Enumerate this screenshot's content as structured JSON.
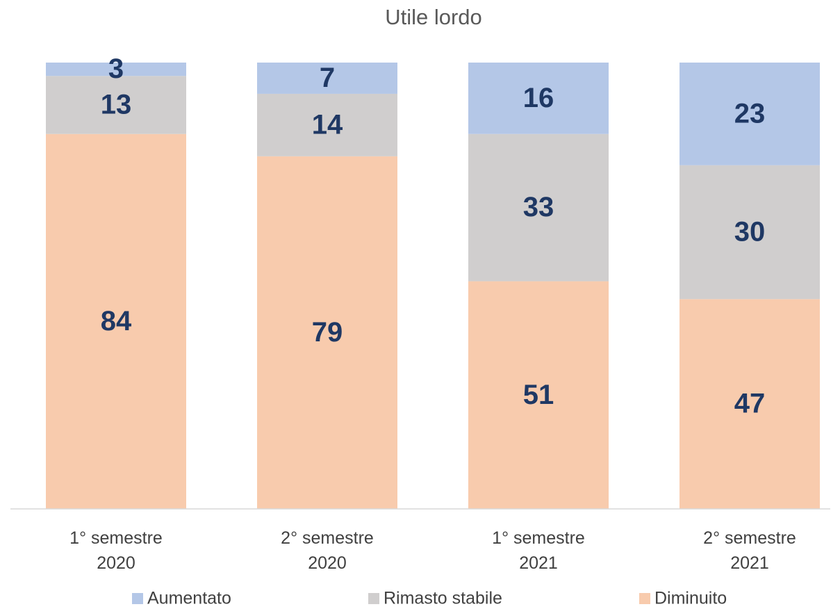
{
  "chart_data": {
    "type": "stacked_bar",
    "title": "Utile lordo",
    "categories": [
      "1° semestre 2020",
      "2° semestre 2020",
      "1° semestre 2021",
      "2° semestre 2021"
    ],
    "series": [
      {
        "name": "Aumentato",
        "color": "#b4c7e7",
        "values": [
          3,
          7,
          16,
          23
        ]
      },
      {
        "name": "Rimasto stabile",
        "color": "#d0cece",
        "values": [
          13,
          14,
          33,
          30
        ]
      },
      {
        "name": "Diminuito",
        "color": "#f8cbad",
        "values": [
          84,
          79,
          51,
          47
        ]
      }
    ],
    "ylim": [
      0,
      100
    ],
    "legend": "bottom"
  }
}
